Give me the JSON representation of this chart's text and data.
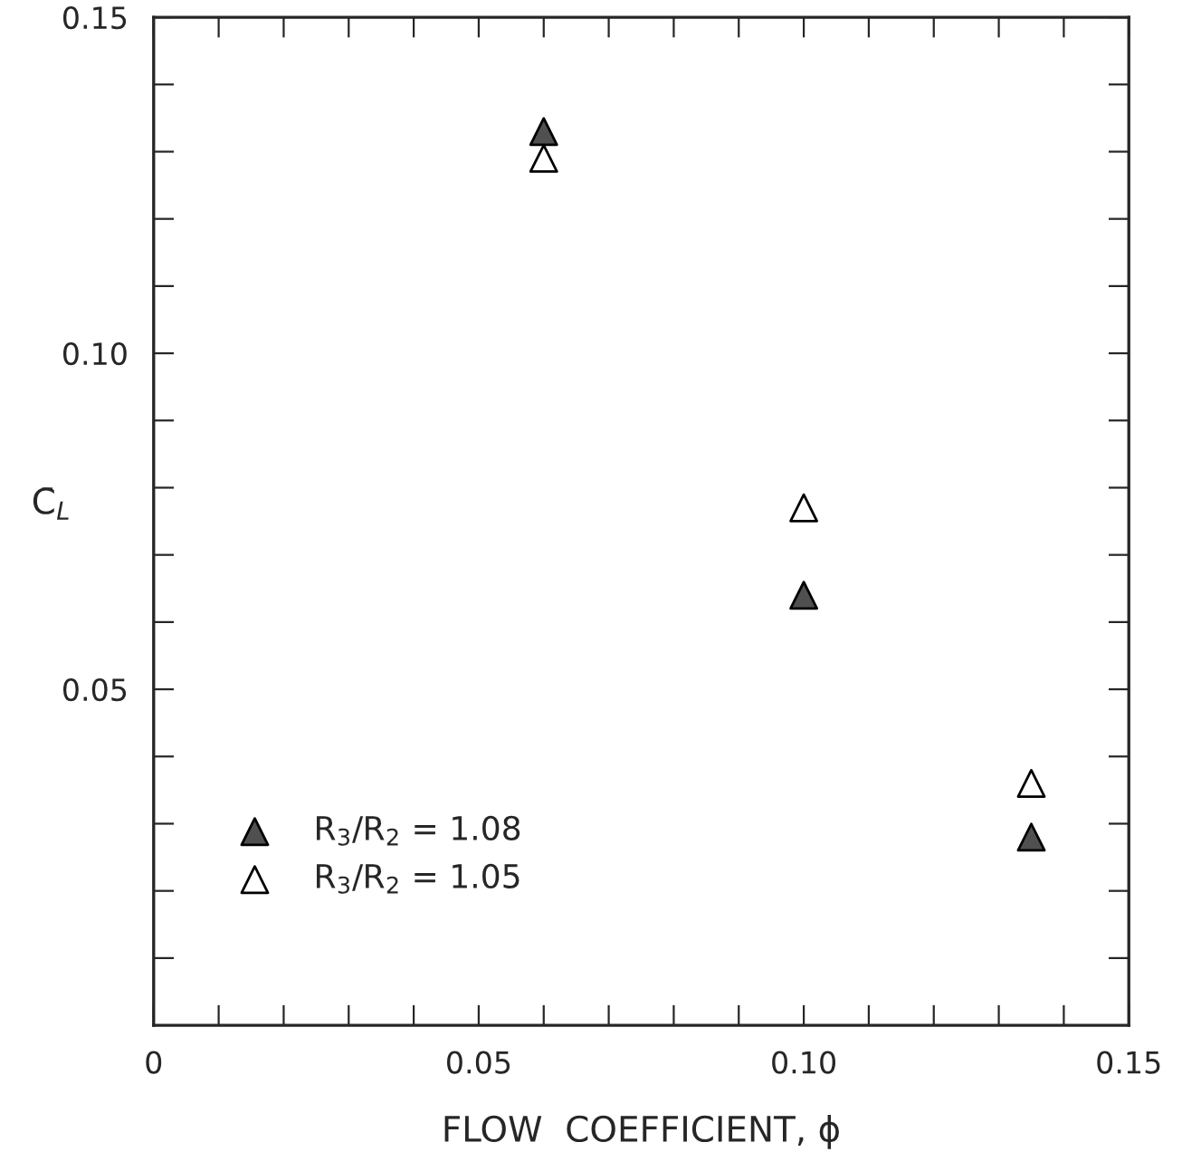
{
  "chart_data": {
    "type": "scatter",
    "xlabel": "FLOW  COEFFICIENT, ϕ",
    "ylabel": "C̄$_{L}$",
    "x": [
      0.06,
      0.1,
      0.135
    ],
    "series": [
      {
        "name": "R$_{3}$/R$_{2}$ = 1.08",
        "color": "#505050",
        "values": [
          0.133,
          0.064,
          0.028
        ]
      },
      {
        "name": "R$_{3}$/R$_{2}$ = 1.05",
        "color": "#ffffff",
        "values": [
          0.129,
          0.077,
          0.036
        ]
      }
    ],
    "marker": "triangle",
    "grid": false,
    "legend": "bottom left",
    "xlim": [
      0,
      0.15
    ],
    "ylim": [
      0,
      0.15
    ],
    "xticks": [
      {
        "value": 0,
        "label": "0"
      },
      {
        "value": 0.01,
        "label": null
      },
      {
        "value": 0.02,
        "label": null
      },
      {
        "value": 0.03,
        "label": null
      },
      {
        "value": 0.04,
        "label": null
      },
      {
        "value": 0.05,
        "label": "0.05"
      },
      {
        "value": 0.06,
        "label": null
      },
      {
        "value": 0.07,
        "label": null
      },
      {
        "value": 0.08,
        "label": null
      },
      {
        "value": 0.09,
        "label": null
      },
      {
        "value": 0.1,
        "label": "0.10"
      },
      {
        "value": 0.11,
        "label": null
      },
      {
        "value": 0.12,
        "label": null
      },
      {
        "value": 0.13,
        "label": null
      },
      {
        "value": 0.14,
        "label": null
      },
      {
        "value": 0.15,
        "label": "0.15"
      }
    ],
    "yticks": [
      {
        "value": 0.01,
        "label": null
      },
      {
        "value": 0.02,
        "label": null
      },
      {
        "value": 0.03,
        "label": null
      },
      {
        "value": 0.04,
        "label": null
      },
      {
        "value": 0.05,
        "label": "0.05"
      },
      {
        "value": 0.06,
        "label": null
      },
      {
        "value": 0.07,
        "label": null
      },
      {
        "value": 0.08,
        "label": null
      },
      {
        "value": 0.09,
        "label": null
      },
      {
        "value": 0.1,
        "label": "0.10"
      },
      {
        "value": 0.11,
        "label": null
      },
      {
        "value": 0.12,
        "label": null
      },
      {
        "value": 0.13,
        "label": null
      },
      {
        "value": 0.14,
        "label": null
      },
      {
        "value": 0.15,
        "label": "0.15"
      }
    ]
  }
}
